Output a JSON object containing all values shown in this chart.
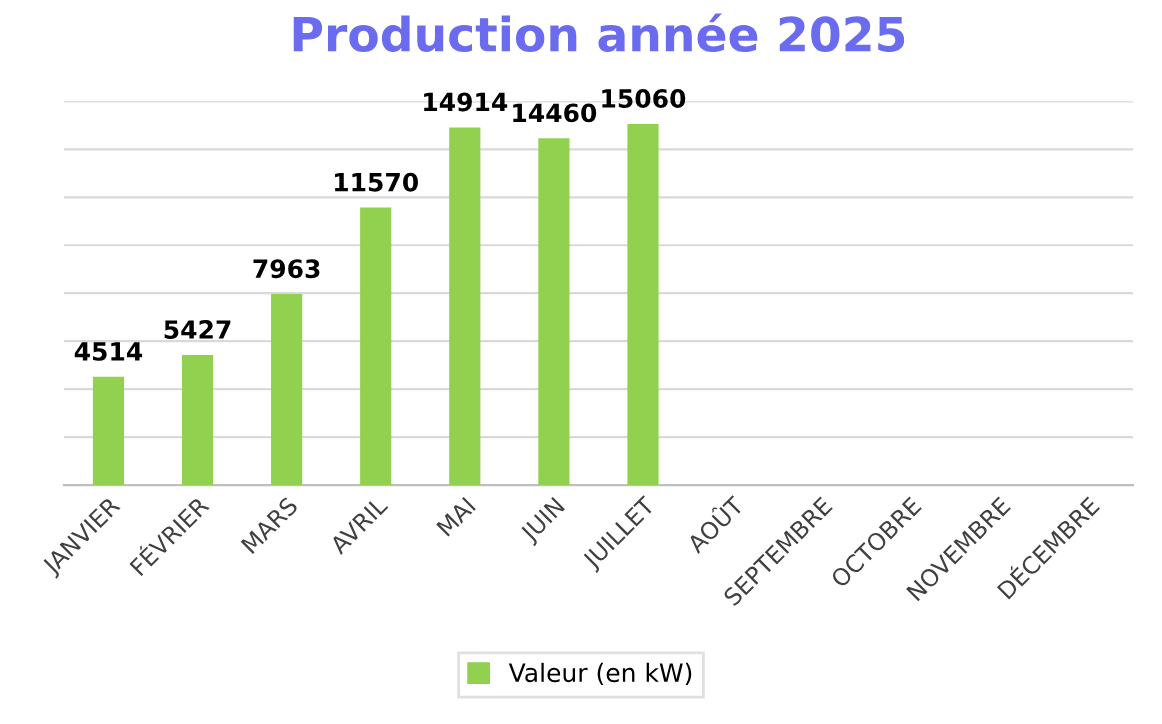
{
  "chart_data": {
    "type": "bar",
    "title": "Production année 2025",
    "categories": [
      "JANVIER",
      "FÉVRIER",
      "MARS",
      "AVRIL",
      "MAI",
      "JUIN",
      "JUILLET",
      "AOÛT",
      "SEPTEMBRE",
      "OCTOBRE",
      "NOVEMBRE",
      "DÉCEMBRE"
    ],
    "series": [
      {
        "name": "Valeur (en kW)",
        "color": "#92d050",
        "values": [
          4514,
          5427,
          7963,
          11570,
          14914,
          14460,
          15060,
          null,
          null,
          null,
          null,
          null
        ]
      }
    ],
    "data_labels": true,
    "ylim": [
      0,
      16000
    ],
    "yticks": [
      {
        "value": 0,
        "label": null
      },
      {
        "value": 2000,
        "label": null
      },
      {
        "value": 4000,
        "label": null
      },
      {
        "value": 6000,
        "label": null
      },
      {
        "value": 8000,
        "label": null
      },
      {
        "value": 10000,
        "label": null
      },
      {
        "value": 12000,
        "label": null
      },
      {
        "value": 14000,
        "label": null
      },
      {
        "value": 16000,
        "label": null
      }
    ],
    "grid": "y",
    "legend": "bottom",
    "tick_labels": "x"
  }
}
